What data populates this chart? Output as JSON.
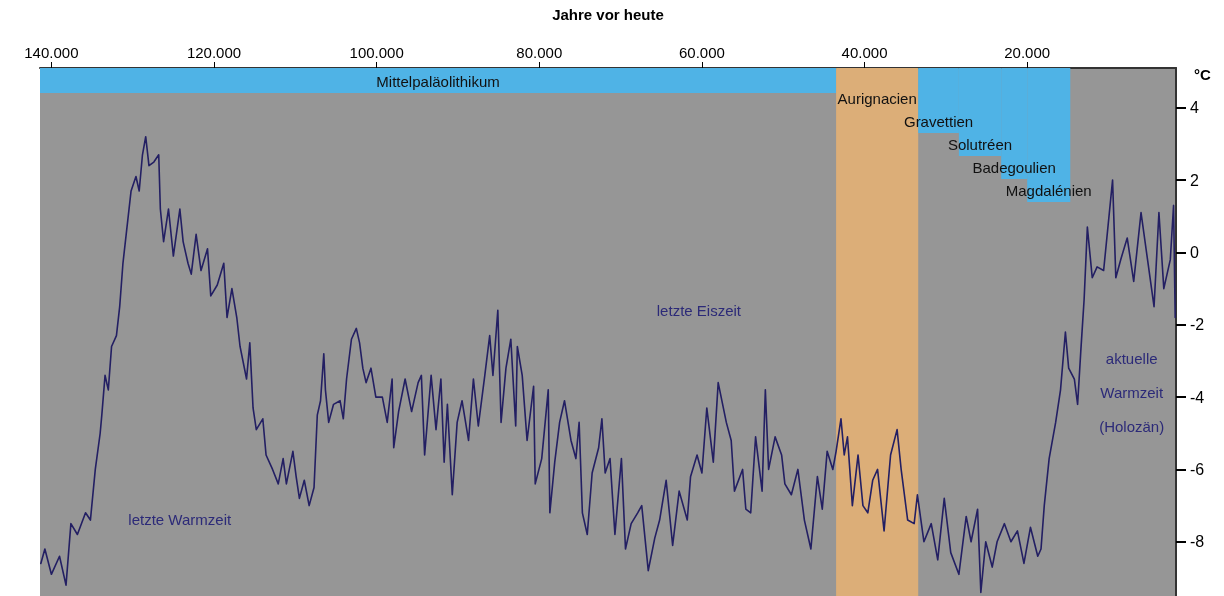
{
  "chart_data": {
    "type": "line",
    "xlabel": "Jahre vor heute",
    "ylabel": "°C",
    "xlim": [
      141400,
      1700
    ],
    "xticks": [
      {
        "value": 140000,
        "label": "140.000"
      },
      {
        "value": 120000,
        "label": "120.000"
      },
      {
        "value": 100000,
        "label": "100.000"
      },
      {
        "value": 80000,
        "label": "80.000"
      },
      {
        "value": 60000,
        "label": "60.000"
      },
      {
        "value": 40000,
        "label": "40.000"
      },
      {
        "value": 20000,
        "label": "20.000"
      }
    ],
    "ylim": [
      -9.5,
      5.1
    ],
    "yticks": [
      -8,
      -6,
      -4,
      -2,
      0,
      2,
      4
    ],
    "grid": false,
    "marker": "none",
    "series": [
      {
        "color": "#231f63",
        "x": [
          141300,
          140800,
          140000,
          139000,
          138200,
          137600,
          136800,
          135800,
          135200,
          134600,
          134000,
          133800,
          133400,
          133000,
          132600,
          132000,
          131600,
          131200,
          130800,
          130200,
          129600,
          129200,
          128800,
          128400,
          128000,
          127400,
          126800,
          126600,
          126200,
          125600,
          125000,
          124200,
          123800,
          123200,
          122800,
          122200,
          121600,
          120800,
          120400,
          119600,
          118800,
          118400,
          117800,
          117200,
          116800,
          116000,
          115600,
          115200,
          114800,
          114000,
          113600,
          112800,
          112100,
          111500,
          111100,
          110300,
          109900,
          109500,
          108900,
          108300,
          107700,
          107300,
          106900,
          106500,
          106300,
          105900,
          105300,
          104500,
          104100,
          103700,
          103100,
          102500,
          102100,
          101700,
          101300,
          100700,
          100100,
          99300,
          98700,
          98100,
          97900,
          97300,
          96500,
          95700,
          94900,
          94500,
          94100,
          93300,
          92700,
          92100,
          91700,
          91300,
          90700,
          90100,
          89500,
          88700,
          88100,
          87500,
          86700,
          86100,
          85700,
          85100,
          84700,
          84100,
          83500,
          82900,
          82700,
          82100,
          81500,
          80700,
          80500,
          79700,
          78900,
          78700,
          78100,
          77500,
          76900,
          76100,
          75500,
          75100,
          74700,
          74100,
          73500,
          72700,
          72300,
          71900,
          71300,
          70700,
          69900,
          69400,
          68700,
          67900,
          67400,
          66600,
          65800,
          65200,
          64400,
          63600,
          62800,
          61800,
          61400,
          60600,
          60000,
          59400,
          58600,
          58000,
          57000,
          56400,
          56000,
          55000,
          54600,
          54000,
          53400,
          52600,
          52200,
          51800,
          51000,
          50200,
          49800,
          49000,
          48200,
          47400,
          46600,
          45800,
          45200,
          44600,
          43900,
          43500,
          42900,
          42500,
          42100,
          41500,
          40800,
          40200,
          39600,
          39000,
          38400,
          37600,
          36800,
          36000,
          35500,
          34700,
          33900,
          33500,
          32700,
          31800,
          31000,
          30200,
          29400,
          28400,
          27500,
          26900,
          26100,
          25700,
          25100,
          24300,
          23700,
          22800,
          22000,
          21200,
          20400,
          19600,
          18700,
          18300,
          17900,
          17300,
          16500,
          15900,
          15300,
          14900,
          14200,
          13800,
          13400,
          13000,
          12600,
          12000,
          11400,
          10600,
          9500,
          9100,
          8500,
          7700,
          6900,
          6000,
          5200,
          4400,
          3800,
          3200,
          2400,
          2000,
          1800
        ],
        "values": [
          -8.6,
          -8.2,
          -8.9,
          -8.4,
          -9.2,
          -7.5,
          -7.8,
          -7.2,
          -7.4,
          -6.0,
          -5.0,
          -4.5,
          -3.4,
          -3.8,
          -2.6,
          -2.3,
          -1.5,
          -0.3,
          0.5,
          1.7,
          2.1,
          1.7,
          2.7,
          3.2,
          2.4,
          2.5,
          2.7,
          1.2,
          0.3,
          1.2,
          -0.1,
          1.2,
          0.3,
          -0.3,
          -0.6,
          0.5,
          -0.5,
          0.1,
          -1.2,
          -0.9,
          -0.3,
          -1.8,
          -1.0,
          -1.8,
          -2.6,
          -3.5,
          -2.5,
          -4.3,
          -4.9,
          -4.6,
          -5.6,
          -6.0,
          -6.4,
          -5.7,
          -6.4,
          -5.5,
          -6.2,
          -6.8,
          -6.3,
          -7.0,
          -6.5,
          -4.5,
          -4.1,
          -2.8,
          -3.8,
          -4.7,
          -4.2,
          -4.1,
          -4.6,
          -3.5,
          -2.4,
          -2.1,
          -2.5,
          -3.2,
          -3.6,
          -3.2,
          -4.0,
          -4.0,
          -4.7,
          -3.5,
          -5.4,
          -4.4,
          -3.5,
          -4.4,
          -3.6,
          -3.4,
          -5.6,
          -3.4,
          -4.9,
          -3.5,
          -5.8,
          -4.2,
          -6.7,
          -4.7,
          -4.1,
          -5.2,
          -3.5,
          -4.8,
          -3.4,
          -2.3,
          -3.4,
          -1.6,
          -4.7,
          -3.2,
          -2.4,
          -4.8,
          -2.6,
          -3.4,
          -5.2,
          -3.7,
          -6.4,
          -5.7,
          -3.8,
          -7.2,
          -5.8,
          -4.7,
          -4.1,
          -5.2,
          -5.7,
          -4.7,
          -7.2,
          -7.8,
          -6.1,
          -5.4,
          -4.6,
          -6.1,
          -5.7,
          -7.8,
          -5.7,
          -8.2,
          -7.5,
          -7.2,
          -7.0,
          -8.8,
          -7.9,
          -7.4,
          -6.3,
          -8.1,
          -6.6,
          -7.4,
          -6.2,
          -5.6,
          -6.1,
          -4.3,
          -5.8,
          -3.6,
          -4.7,
          -5.2,
          -6.6,
          -6.0,
          -7.1,
          -7.2,
          -5.1,
          -6.6,
          -3.8,
          -6.0,
          -5.1,
          -5.6,
          -6.4,
          -6.7,
          -6.0,
          -7.4,
          -8.2,
          -6.2,
          -7.1,
          -5.5,
          -6.0,
          -5.5,
          -4.6,
          -5.6,
          -5.1,
          -7.0,
          -5.6,
          -7.0,
          -7.2,
          -6.3,
          -6.0,
          -7.7,
          -5.6,
          -4.9,
          -6.0,
          -7.4,
          -7.5,
          -6.7,
          -8.0,
          -7.5,
          -8.5,
          -6.8,
          -8.3,
          -8.9,
          -7.3,
          -8.0,
          -7.1,
          -9.4,
          -8.0,
          -8.7,
          -8.0,
          -7.5,
          -8.0,
          -7.7,
          -8.6,
          -7.6,
          -8.4,
          -8.2,
          -7.0,
          -5.7,
          -4.7,
          -3.8,
          -2.2,
          -3.2,
          -3.5,
          -4.2,
          -2.7,
          -1.3,
          0.7,
          -0.7,
          -0.4,
          -0.5,
          2.0,
          -0.7,
          -0.2,
          0.4,
          -0.8,
          1.1,
          -0.2,
          -1.5,
          1.1,
          -1.0,
          -0.2,
          1.3,
          -1.8
        ]
      }
    ],
    "bands": [
      {
        "axis": "x",
        "from": 141400,
        "to": 43500,
        "label": "Mittelpaläolithikum",
        "color": "#4fb3e6"
      },
      {
        "axis": "x",
        "from": 43500,
        "to": 33400,
        "label": "Aurignacien",
        "color": "#dcae78"
      },
      {
        "axis": "x",
        "from": 33400,
        "to": 28400,
        "label": "Gravettien",
        "color": "#4fb3e6"
      },
      {
        "axis": "x",
        "from": 28400,
        "to": 23200,
        "label": "Solutréen",
        "color": "#4fb3e6"
      },
      {
        "axis": "x",
        "from": 23200,
        "to": 20000,
        "label": "Badegoulien",
        "color": "#4fb3e6"
      },
      {
        "axis": "x",
        "from": 20000,
        "to": 14700,
        "label": "Magdalénien",
        "color": "#4fb3e6"
      }
    ],
    "annotations": [
      "letzte Warmzeit",
      "letzte Eiszeit",
      "aktuelle\nWarmzeit\n(Holozän)"
    ]
  }
}
